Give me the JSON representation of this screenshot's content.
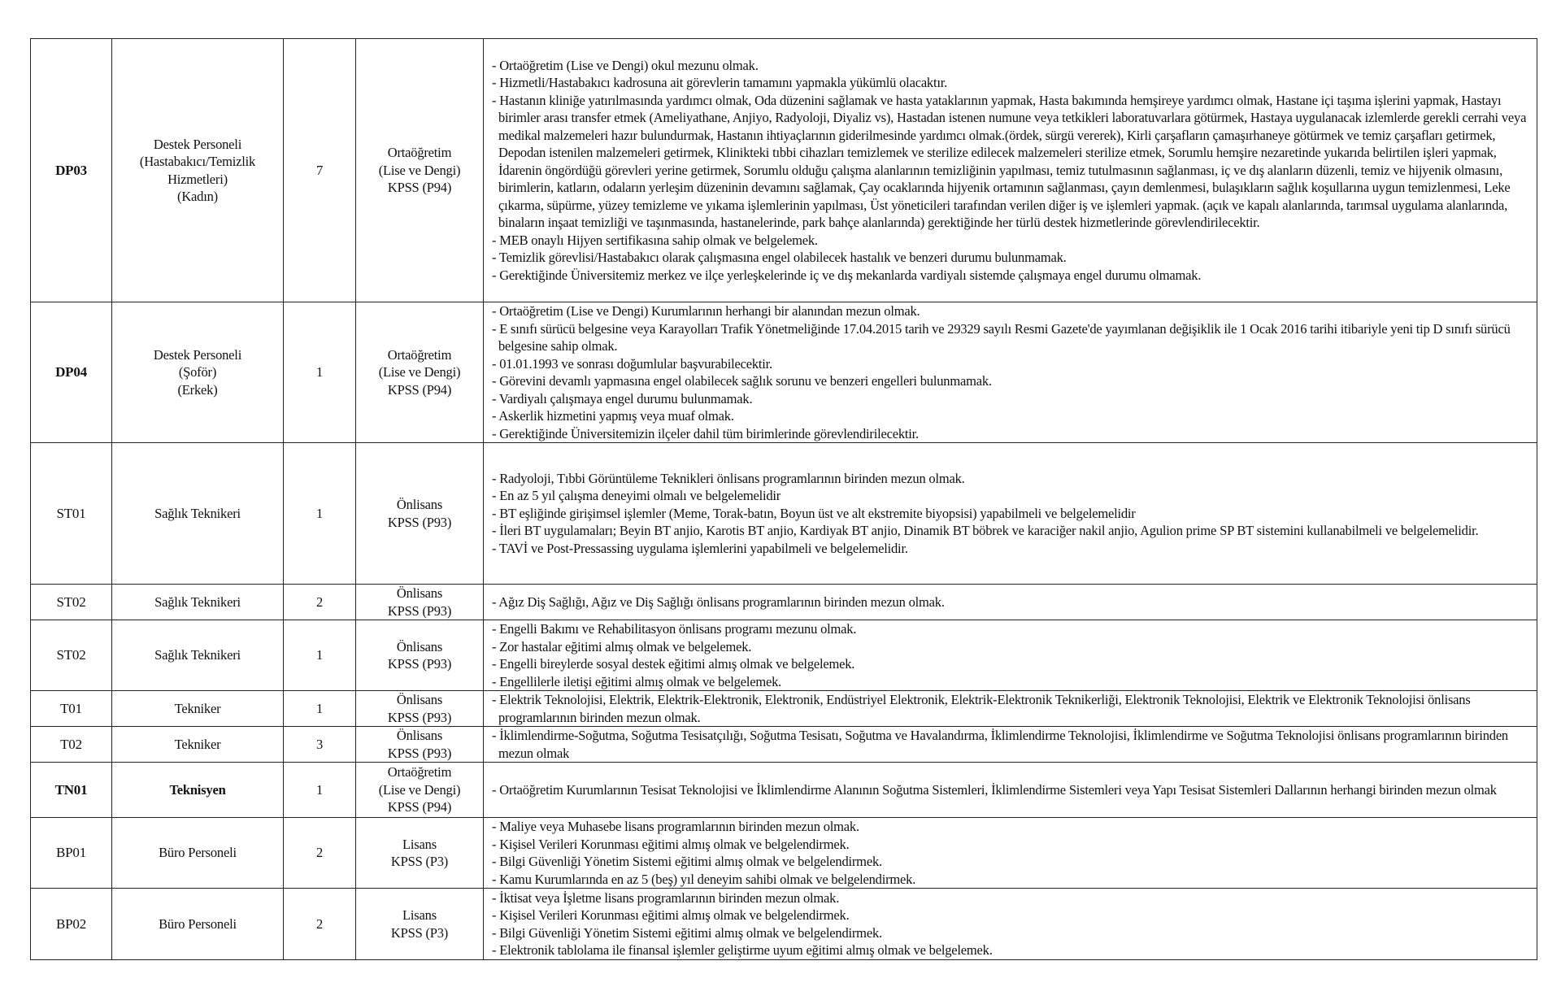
{
  "rows": [
    {
      "code": "DP03",
      "title": [
        "Destek Personeli",
        "(Hastabakıcı/Temizlik",
        "Hizmetleri)",
        "(Kadın)"
      ],
      "count": "7",
      "education": [
        "Ortaöğretim",
        "(Lise ve Dengi)",
        "KPSS (P94)"
      ],
      "requirements": [
        "- Ortaöğretim (Lise ve Dengi) okul  mezunu olmak.",
        "- Hizmetli/Hastabakıcı  kadrosuna ait görevlerin tamamını yapmakla yükümlü olacaktır.",
        "- Hastanın kliniğe yatırılmasında yardımcı olmak, Oda düzenini sağlamak ve hasta yataklarının yapmak, Hasta bakımında hemşireye  yardımcı olmak, Hastane içi taşıma işlerini yapmak, Hastayı birimler arası transfer etmek (Ameliyathane, Anjiyo, Radyoloji, Diyaliz vs), Hastadan istenen  numune veya tetkikleri laboratuvarlara götürmek, Hastaya  uygulanacak  izlemlerde gerekli  cerrahi veya  medikal  malzemeleri  hazır  bulundurmak,  Hastanın  ihtiyaçlarının giderilmesinde yardımcı olmak.(ördek, sürgü vererek), Kirli çarşafların çamaşırhaneye götürmek ve temiz çarşafları  getirmek,  Depodan istenilen malzemeleri getirmek, Klinikteki tıbbi cihazları temizlemek   ve sterilize edilecek malzemeleri  sterilize etmek,  Sorumlu hemşire  nezaretinde  yukarıda belirtilen  işleri yapmak, İdarenin öngördüğü  görevleri yerine getirmek, Sorumlu olduğu çalışma alanlarının temizliğinin yapılması, temiz  tutulmasının sağlanması, iç ve dış alanların düzenli, temiz ve hijyenik olmasını, birimlerin, katların, odaların yerleşim düzeninin devamını sağlamak,  Çay  ocaklarında  hijyenik  ortamının sağlanması, çayın demlenmesi, bulaşıkların sağlık  koşullarına uygun temizlenmesi, Leke çıkarma, süpürme, yüzey  temizleme ve yıkama işlemlerinin yapılması, Üst yöneticileri tarafından verilen  diğer iş ve işlemleri yapmak. (açık  ve kapalı   alanlarında, tarımsal uygulama  alanlarında, binaların inşaat temizliği ve taşınmasında, hastanelerinde, park bahçe alanlarında)  gerektiğinde her türlü destek hizmetlerinde görevlendirilecektir.",
        "- MEB onaylı Hijyen sertifikasına sahip olmak ve belgelemek.",
        "- Temizlik görevlisi/Hastabakıcı  olarak çalışmasına engel olabilecek hastalık ve benzeri durumu bulunmamak.",
        "- Gerektiğinde Üniversitemiz merkez ve ilçe yerleşkelerinde iç ve dış mekanlarda  vardiyalı sistemde çalışmaya engel durumu olmamak."
      ]
    },
    {
      "code": "DP04",
      "title": [
        "Destek Personeli",
        "(Şoför)",
        "(Erkek)"
      ],
      "count": "1",
      "education": [
        "Ortaöğretim",
        "(Lise ve Dengi)",
        "KPSS (P94)"
      ],
      "requirements": [
        "- Ortaöğretim (Lise ve Dengi) Kurumlarının  herhangi bir alanından mezun olmak.",
        "- E sınıfı sürücü belgesine veya Karayolları Trafik Yönetmeliğinde 17.04.2015 tarih ve 29329 sayılı Resmi Gazete'de yayımlanan değişiklik ile 1 Ocak  2016  tarihi itibariyle yeni tip D sınıfı sürücü belgesine sahip olmak.",
        "- 01.01.1993 ve sonrası doğumlular başvurabilecektir.",
        "- Görevini devamlı yapmasına engel olabilecek sağlık sorunu ve benzeri engelleri bulunmamak.",
        "- Vardiyalı çalışmaya engel durumu bulunmamak.",
        "- Askerlik hizmetini yapmış veya muaf olmak.",
        "- Gerektiğinde Üniversitemizin ilçeler dahil tüm birimlerinde  görevlendirilecektir."
      ]
    },
    {
      "code": "ST01",
      "title": [
        "Sağlık Teknikeri"
      ],
      "count": "1",
      "education": [
        "Önlisans",
        "KPSS (P93)"
      ],
      "requirements": [
        "- Radyoloji, Tıbbi Görüntüleme Teknikleri önlisans programlarının birinden mezun olmak.",
        "- En az 5 yıl çalışma deneyimi olmalı ve belgelemelidir",
        "- BT eşliğinde girişimsel işlemler (Meme, Torak-batın, Boyun üst ve alt ekstremite biyopsisi) yapabilmeli ve belgelemelidir",
        "- İleri BT uygulamaları; Beyin BT anjio, Karotis BT anjio, Kardiyak BT anjio, Dinamik BT böbrek ve karaciğer nakil anjio, Agulion prime SP   BT   sistemini kullanabilmeli ve belgelemelidir.",
        "- TAVİ ve Post-Pressassing uygulama işlemlerini yapabilmeli ve belgelemelidir."
      ]
    },
    {
      "code": "ST02",
      "title": [
        "Sağlık Teknikeri"
      ],
      "count": "2",
      "education": [
        "Önlisans",
        "KPSS (P93)"
      ],
      "requirements": [
        "- Ağız Diş Sağlığı, Ağız ve Diş Sağlığı önlisans programlarının birinden mezun olmak."
      ]
    },
    {
      "code": "ST02",
      "title": [
        "Sağlık Teknikeri"
      ],
      "count": "1",
      "education": [
        "Önlisans",
        "KPSS (P93)"
      ],
      "requirements": [
        "- Engelli Bakımı ve Rehabilitasyon  önlisans programı  mezunu olmak.",
        "- Zor hastalar eğitimi almış olmak  ve belgelemek.",
        "- Engelli bireylerde sosyal destek eğitimi almış olmak ve belgelemek.",
        "- Engellilerle iletişi eğitimi almış olmak ve belgelemek."
      ]
    },
    {
      "code": "T01",
      "title": [
        "Tekniker"
      ],
      "count": "1",
      "education": [
        "Önlisans",
        "KPSS (P93)"
      ],
      "requirements": [
        "- Elektrik Teknolojisi, Elektrik, Elektrik-Elektronik, Elektronik, Endüstriyel Elektronik, Elektrik-Elektronik Teknikerliği, Elektronik Teknolojisi, Elektrik ve Elektronik Teknolojisi önlisans programlarının birinden mezun olmak."
      ]
    },
    {
      "code": "T02",
      "title": [
        "Tekniker"
      ],
      "count": "3",
      "education": [
        "Önlisans",
        "KPSS (P93)"
      ],
      "requirements": [
        "-  İklimlendirme-Soğutma, Soğutma Tesisatçılığı, Soğutma Tesisatı, Soğutma ve Havalandırma, İklimlendirme Teknolojisi, İklimlendirme ve Soğutma Teknolojisi önlisans programlarının birinden mezun olmak"
      ]
    },
    {
      "code": "TN01",
      "title": [
        "Teknisyen"
      ],
      "count": "1",
      "education": [
        "Ortaöğretim",
        "(Lise ve Dengi)",
        "KPSS (P94)"
      ],
      "requirements": [
        "- Ortaöğretim Kurumlarının Tesisat Teknolojisi ve İklimlendirme Alanının Soğutma Sistemleri, İklimlendirme Sistemleri veya Yapı Tesisat Sistemleri Dallarının herhangi birinden mezun olmak"
      ]
    },
    {
      "code": "BP01",
      "title": [
        "Büro Personeli"
      ],
      "count": "2",
      "education": [
        "Lisans",
        "KPSS (P3)"
      ],
      "requirements": [
        "- Maliye veya Muhasebe lisans programlarının  birinden  mezun olmak.",
        "- Kişisel Verileri Korunması eğitimi almış olmak ve belgelendirmek.",
        "- Bilgi Güvenliği Yönetim Sistemi eğitimi almış olmak ve belgelendirmek.",
        "- Kamu Kurumlarında en az 5 (beş) yıl deneyim sahibi olmak ve belgelendirmek."
      ]
    },
    {
      "code": "BP02",
      "title": [
        "Büro Personeli"
      ],
      "count": "2",
      "education": [
        "Lisans",
        "KPSS (P3)"
      ],
      "requirements": [
        "- İktisat veya İşletme  lisans programlarının birinden mezun olmak.",
        "- Kişisel Verileri Korunması eğitimi almış olmak ve belgelendirmek.",
        "- Bilgi Güvenliği Yönetim Sistemi eğitimi almış olmak ve belgelendirmek.",
        "- Elektronik tablolama ile finansal işlemler geliştirme uyum eğitimi almış olmak ve belgelemek."
      ]
    }
  ]
}
